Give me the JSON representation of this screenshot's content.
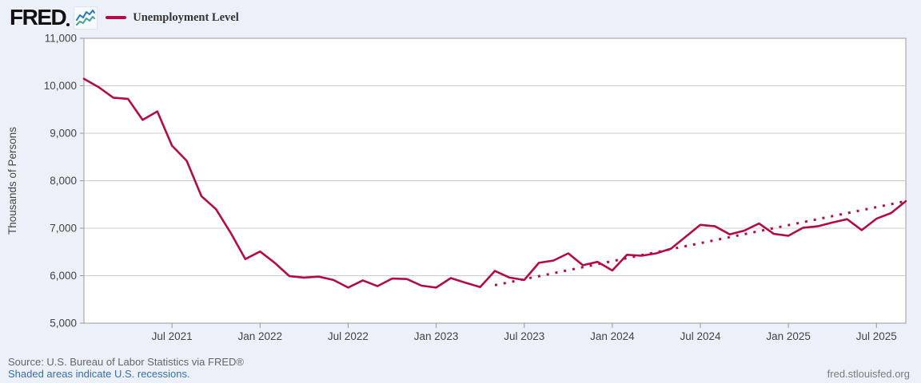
{
  "header": {
    "logo_text": "FRED",
    "legend": {
      "series_label": "Unemployment Level",
      "swatch_color": "#b00c48"
    }
  },
  "chart_data": {
    "type": "line",
    "title": "Unemployment Level",
    "ylabel": "Thousands of Persons",
    "xlabel": "",
    "frequency": "monthly",
    "x_start": "Jan 2021",
    "x_end": "Sep 2025",
    "ylim": [
      5000,
      11000
    ],
    "grid": true,
    "legend_position": "top-left",
    "y_ticks": [
      {
        "value": 5000,
        "label": "5,000"
      },
      {
        "value": 6000,
        "label": "6,000"
      },
      {
        "value": 7000,
        "label": "7,000"
      },
      {
        "value": 8000,
        "label": "8,000"
      },
      {
        "value": 9000,
        "label": "9,000"
      },
      {
        "value": 10000,
        "label": "10,000"
      },
      {
        "value": 11000,
        "label": "11,000"
      }
    ],
    "x_ticks": [
      {
        "index": 6,
        "label": "Jul 2021"
      },
      {
        "index": 12,
        "label": "Jan 2022"
      },
      {
        "index": 18,
        "label": "Jul 2022"
      },
      {
        "index": 24,
        "label": "Jan 2023"
      },
      {
        "index": 30,
        "label": "Jul 2023"
      },
      {
        "index": 36,
        "label": "Jan 2024"
      },
      {
        "index": 42,
        "label": "Jul 2024"
      },
      {
        "index": 48,
        "label": "Jan 2025"
      },
      {
        "index": 54,
        "label": "Jul 2025"
      }
    ],
    "series": [
      {
        "name": "Unemployment Level",
        "color": "#b00c48",
        "months": [
          "2021-01",
          "2021-02",
          "2021-03",
          "2021-04",
          "2021-05",
          "2021-06",
          "2021-07",
          "2021-08",
          "2021-09",
          "2021-10",
          "2021-11",
          "2021-12",
          "2022-01",
          "2022-02",
          "2022-03",
          "2022-04",
          "2022-05",
          "2022-06",
          "2022-07",
          "2022-08",
          "2022-09",
          "2022-10",
          "2022-11",
          "2022-12",
          "2023-01",
          "2023-02",
          "2023-03",
          "2023-04",
          "2023-05",
          "2023-06",
          "2023-07",
          "2023-08",
          "2023-09",
          "2023-10",
          "2023-11",
          "2023-12",
          "2024-01",
          "2024-02",
          "2024-03",
          "2024-04",
          "2024-05",
          "2024-06",
          "2024-07",
          "2024-08",
          "2024-09",
          "2024-10",
          "2024-11",
          "2024-12",
          "2025-01",
          "2025-02",
          "2025-03",
          "2025-04",
          "2025-05",
          "2025-06",
          "2025-07",
          "2025-08",
          "2025-09"
        ],
        "values": [
          10148,
          9972,
          9750,
          9725,
          9280,
          9460,
          8740,
          8420,
          7675,
          7400,
          6900,
          6350,
          6510,
          6270,
          5990,
          5960,
          5980,
          5910,
          5750,
          5900,
          5780,
          5940,
          5930,
          5790,
          5750,
          5950,
          5850,
          5760,
          6100,
          5960,
          5910,
          6270,
          6320,
          6470,
          6220,
          6290,
          6110,
          6440,
          6420,
          6470,
          6570,
          6820,
          7070,
          7040,
          6870,
          6950,
          7100,
          6880,
          6840,
          7010,
          7040,
          7120,
          7190,
          6960,
          7200,
          7320,
          7570
        ]
      }
    ],
    "trend": {
      "name": "dotted-trend-line",
      "color": "#b00c48",
      "start_index": 28,
      "start_value": 5800,
      "end_index": 56,
      "end_value": 7570
    }
  },
  "footer": {
    "source_line": "Source: U.S. Bureau of Labor Statistics via FRED®",
    "recession_note": "Shaded areas indicate U.S. recessions.",
    "site_url": "fred.stlouisfed.org"
  },
  "colors": {
    "background": "#ecf1f9",
    "plot_background": "#ffffff",
    "plot_border": "#999999",
    "gridline": "#cccccc",
    "axis_text": "#444444",
    "series_line": "#b00c48",
    "footer_text": "#666666",
    "footer_link": "#3a6ea5"
  }
}
